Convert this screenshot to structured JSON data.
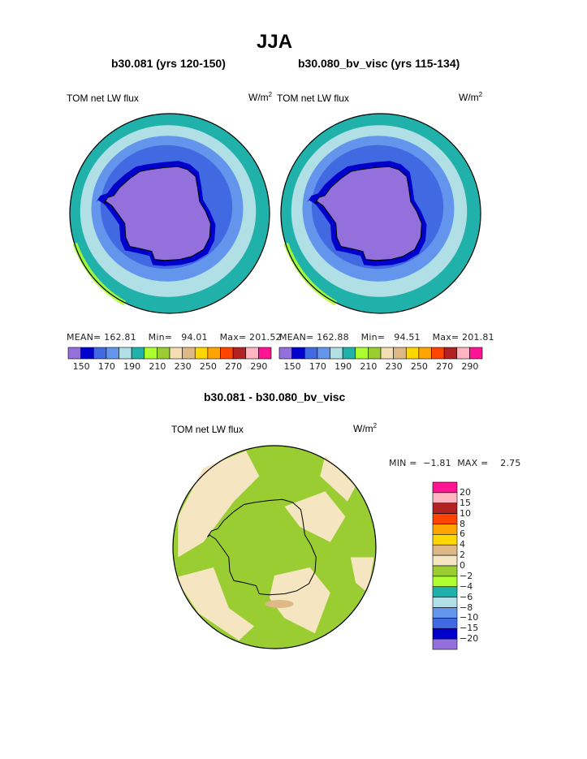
{
  "page": {
    "title": "JJA"
  },
  "colors": {
    "levels150": [
      "#9370db",
      "#0000cd",
      "#4169e1",
      "#6495ed",
      "#b0e0e6",
      "#20b2aa",
      "#adff2f",
      "#9acd32",
      "#f5deb3",
      "#deb887",
      "#ffd700",
      "#ffa500",
      "#ff4500",
      "#b22222",
      "#ffb6c1",
      "#ff1493"
    ],
    "diff": [
      "#9370db",
      "#0000cd",
      "#4169e1",
      "#6495ed",
      "#b0e0e6",
      "#20b2aa",
      "#adff2f",
      "#9acd32",
      "#f5e6c1",
      "#deb887",
      "#ffd700",
      "#ffa500",
      "#ff4500",
      "#b22222",
      "#ffb6c1",
      "#ff1493"
    ]
  },
  "chart_data": [
    {
      "type": "heatmap",
      "projection": "south-polar-stereographic",
      "title": "b30.081 (yrs 120-150)",
      "left_label": "TOM net LW flux",
      "units_prefix": "W/m",
      "units_exp": "2",
      "stats": {
        "mean_label": "MEAN=",
        "mean": "162.81",
        "min_label": "Min=",
        "min": "94.01",
        "max_label": "Max=",
        "max": "201.52"
      },
      "colorbar_ticks": [
        "150",
        "170",
        "190",
        "210",
        "230",
        "250",
        "270",
        "290"
      ]
    },
    {
      "type": "heatmap",
      "projection": "south-polar-stereographic",
      "title": "b30.080_bv_visc (yrs 115-134)",
      "left_label": "TOM net LW flux",
      "units_prefix": "W/m",
      "units_exp": "2",
      "stats": {
        "mean_label": "MEAN=",
        "mean": "162.88",
        "min_label": "Min=",
        "min": "94.51",
        "max_label": "Max=",
        "max": "201.81"
      },
      "colorbar_ticks": [
        "150",
        "170",
        "190",
        "210",
        "230",
        "250",
        "270",
        "290"
      ]
    },
    {
      "type": "heatmap",
      "projection": "south-polar-stereographic",
      "title": "b30.081 - b30.080_bv_visc",
      "left_label": "TOM net LW flux",
      "units_prefix": "W/m",
      "units_exp": "2",
      "stats": {
        "min_label": "MIN =",
        "min": "−1.81",
        "max_label": "MAX =",
        "max": "2.75"
      },
      "colorbar_ticks": [
        "20",
        "15",
        "10",
        "8",
        "6",
        "4",
        "2",
        "0",
        "−2",
        "−4",
        "−6",
        "−8",
        "−10",
        "−15",
        "−20"
      ]
    }
  ]
}
